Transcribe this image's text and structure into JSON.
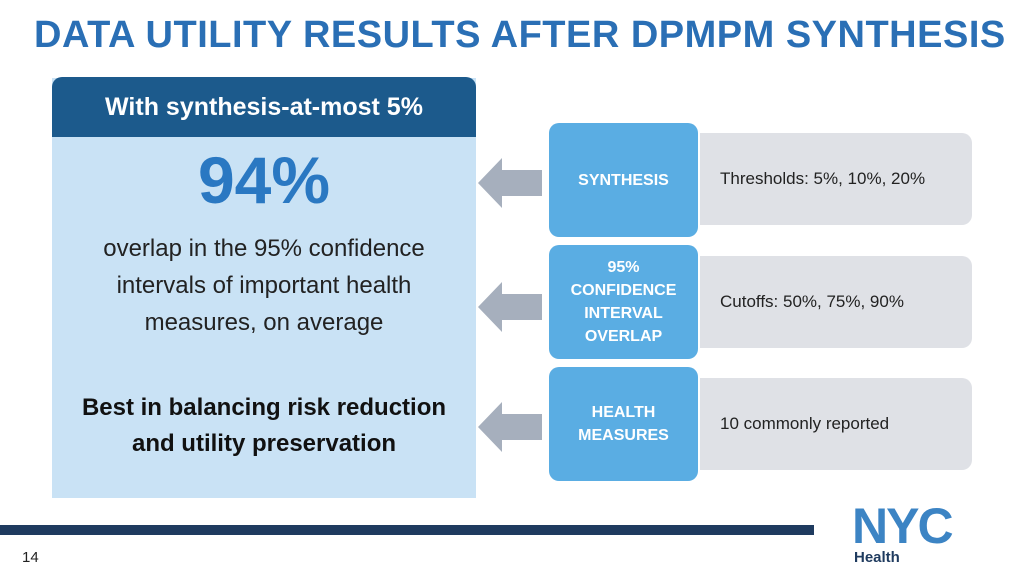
{
  "title": "DATA UTILITY RESULTS AFTER DPMPM SYNTHESIS",
  "left_panel": {
    "header": "With synthesis-at-most 5%",
    "big_value": "94%",
    "description": "overlap in the 95% confidence intervals of important health measures, on average",
    "conclusion": "Best in balancing risk reduction and utility preservation"
  },
  "items": [
    {
      "label": "SYNTHESIS",
      "detail": "Thresholds: 5%, 10%, 20%"
    },
    {
      "label": "95%\nCONFIDENCE\nINTERVAL\nOVERLAP",
      "detail": "Cutoffs: 50%, 75%, 90%"
    },
    {
      "label": "HEALTH\nMEASURES",
      "detail": "10 commonly reported"
    }
  ],
  "footer": {
    "page_number": "14",
    "logo_text": "NYC",
    "logo_subtext": "Health"
  },
  "colors": {
    "title": "#2a6fb5",
    "header_bg": "#1c5a8c",
    "panel_bg": "#c9e2f5",
    "box_bg": "#5aade3",
    "pill_bg": "#dfe1e6",
    "arrow": "#a6afbd",
    "footer_bar": "#1f3b5f"
  }
}
